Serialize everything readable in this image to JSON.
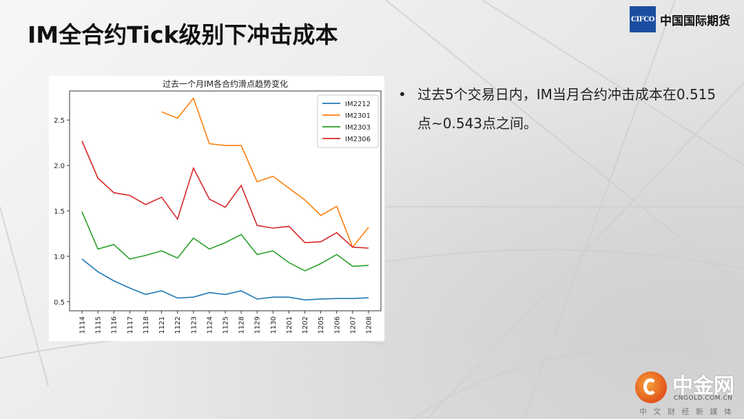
{
  "slide": {
    "title": "IM全合约Tick级别下冲击成本"
  },
  "logo": {
    "box_text": "CIFCO",
    "name": "中国国际期货"
  },
  "bullet": {
    "text": "过去5个交易日内，IM当月合约冲击成本在0.515点~0.543点之间。"
  },
  "watermark": {
    "brand": "中金网",
    "url": "CNGOLD.COM.CN",
    "sub": "中 文 财 经 新 媒 体"
  },
  "chart_data": {
    "type": "line",
    "title": "过去一个月IM各合约滑点趋势变化",
    "xlabel": "",
    "ylabel": "",
    "categories": [
      "1114",
      "1115",
      "1116",
      "1117",
      "1118",
      "1121",
      "1122",
      "1123",
      "1124",
      "1125",
      "1128",
      "1129",
      "1130",
      "1201",
      "1202",
      "1205",
      "1206",
      "1207",
      "1208"
    ],
    "ylim": [
      0.4,
      2.82
    ],
    "yticks": [
      0.5,
      1.0,
      1.5,
      2.0,
      2.5
    ],
    "ytick_labels": [
      "0.5",
      "1.0",
      "1.5",
      "2.0",
      "2.5"
    ],
    "grid": false,
    "legend": "top-right",
    "series": [
      {
        "name": "IM2212",
        "color": "#1f77b4",
        "values": [
          0.97,
          0.83,
          0.73,
          0.65,
          0.58,
          0.62,
          0.54,
          0.55,
          0.6,
          0.58,
          0.62,
          0.53,
          0.55,
          0.55,
          0.52,
          0.53,
          0.535,
          0.535,
          0.543
        ]
      },
      {
        "name": "IM2301",
        "color": "#ff7f0e",
        "values": [
          null,
          null,
          null,
          null,
          null,
          2.59,
          2.52,
          2.74,
          2.24,
          2.22,
          2.22,
          1.82,
          1.88,
          1.75,
          1.62,
          1.45,
          1.55,
          1.1,
          1.32
        ]
      },
      {
        "name": "IM2303",
        "color": "#2ca02c",
        "values": [
          1.49,
          1.08,
          1.13,
          0.97,
          1.01,
          1.06,
          0.98,
          1.2,
          1.08,
          1.15,
          1.24,
          1.02,
          1.06,
          0.93,
          0.84,
          0.92,
          1.02,
          0.89,
          0.9
        ]
      },
      {
        "name": "IM2306",
        "color": "#d62728",
        "values": [
          2.27,
          1.86,
          1.7,
          1.67,
          1.57,
          1.65,
          1.41,
          1.97,
          1.63,
          1.54,
          1.78,
          1.34,
          1.31,
          1.33,
          1.15,
          1.16,
          1.26,
          1.1,
          1.09
        ]
      }
    ]
  }
}
